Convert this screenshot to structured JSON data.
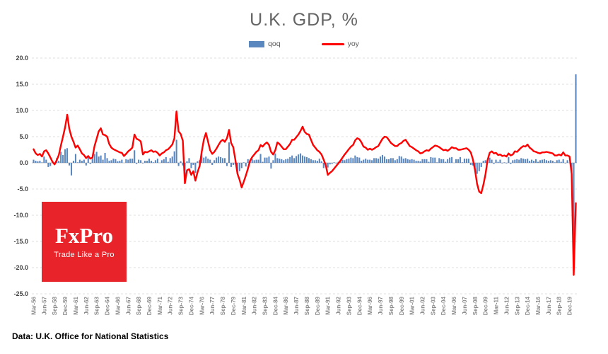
{
  "header": {
    "title": "U.K. GDP, %"
  },
  "legend": {
    "items": [
      {
        "label": "qoq",
        "type": "bar",
        "color": "#5b87bf"
      },
      {
        "label": "yoy",
        "type": "line",
        "color": "#ff0000"
      }
    ]
  },
  "logo": {
    "brand": "FxPro",
    "tagline": "Trade Like a Pro",
    "background": "#e8232a",
    "text_color": "#ffffff"
  },
  "footer": {
    "source": "Data: U.K. Office for National Statistics"
  },
  "chart_data": {
    "type": "combo",
    "title": "U.K. GDP, %",
    "frequency": "quarterly",
    "x_start": "Mar-56",
    "x_end": "Sep-20",
    "ylim": [
      -25,
      20
    ],
    "ytick_step": 5,
    "y_tick_labels": [
      "20.0",
      "15.0",
      "10.0",
      "5.0",
      "0.0",
      "-5.0",
      "-10.0",
      "-15.0",
      "-20.0",
      "-25.0"
    ],
    "grid": "horizontal-dashed",
    "legend_position": "top",
    "x_tick_labels": [
      "Mar-56",
      "Jun-57",
      "Sep-58",
      "Dec-59",
      "Mar-61",
      "Jun-62",
      "Sep-63",
      "Dec-64",
      "Mar-66",
      "Jun-67",
      "Sep-68",
      "Dec-69",
      "Mar-71",
      "Jun-72",
      "Sep-73",
      "Dec-74",
      "Mar-76",
      "Jun-77",
      "Sep-78",
      "Dec-79",
      "Mar-81",
      "Jun-82",
      "Sep-83",
      "Dec-84",
      "Mar-86",
      "Jun-87",
      "Sep-88",
      "Dec-89",
      "Mar-91",
      "Jun-92",
      "Sep-93",
      "Dec-94",
      "Mar-96",
      "Jun-97",
      "Sep-98",
      "Dec-99",
      "Mar-01",
      "Jun-02",
      "Sep-03",
      "Dec-04",
      "Mar-06",
      "Jun-07",
      "Sep-08",
      "Dec-09",
      "Mar-11",
      "Jun-12",
      "Sep-13",
      "Dec-14",
      "Mar-16",
      "Jun-17",
      "Sep-18",
      "Dec-19"
    ],
    "series": [
      {
        "name": "qoq",
        "type": "bar",
        "color": "#5b87bf",
        "values": [
          0.6,
          0.4,
          0.3,
          0.4,
          0.1,
          1.2,
          0.6,
          -0.8,
          -0.6,
          0.3,
          -0.1,
          0.9,
          0.4,
          2.1,
          1.5,
          2.6,
          2.8,
          -0.5,
          -2.4,
          0.4,
          1.7,
          0.1,
          0.6,
          0.4,
          0.6,
          -0.5,
          1.0,
          -0.2,
          0.8,
          1.7,
          2.1,
          1.2,
          1.4,
          0.6,
          1.9,
          0.9,
          0.4,
          0.5,
          0.8,
          0.7,
          0.3,
          0.4,
          0.6,
          0.0,
          0.7,
          0.6,
          0.8,
          0.8,
          2.4,
          -0.2,
          0.6,
          0.5,
          -0.1,
          0.4,
          0.4,
          0.8,
          0.4,
          0.1,
          0.5,
          0.8,
          0.0,
          0.5,
          0.7,
          1.1,
          0.2,
          0.9,
          1.2,
          2.2,
          4.4,
          -0.6,
          0.3,
          -0.5,
          -2.7,
          0.3,
          0.9,
          -1.0,
          -0.4,
          -1.9,
          0.3,
          0.5,
          2.2,
          1.0,
          1.2,
          0.8,
          0.6,
          -0.4,
          0.5,
          1.0,
          1.2,
          1.1,
          0.9,
          0.9,
          -0.6,
          3.9,
          -0.8,
          -0.4,
          -0.3,
          -1.9,
          -1.6,
          -1.0,
          0.1,
          -0.7,
          0.7,
          0.4,
          0.7,
          0.5,
          0.6,
          0.6,
          1.7,
          0.2,
          1.0,
          1.0,
          1.2,
          -1.1,
          0.5,
          1.8,
          0.9,
          0.8,
          0.7,
          0.5,
          0.7,
          0.8,
          1.1,
          1.4,
          0.9,
          1.3,
          1.6,
          1.8,
          1.4,
          1.2,
          1.1,
          0.9,
          0.7,
          0.5,
          0.5,
          0.4,
          0.8,
          0.3,
          -1.0,
          -0.7,
          -0.9,
          -0.3,
          -0.2,
          0.1,
          -0.1,
          0.2,
          0.4,
          0.6,
          0.5,
          0.7,
          0.8,
          1.0,
          0.9,
          1.4,
          1.1,
          1.0,
          0.4,
          0.6,
          0.8,
          0.6,
          0.6,
          0.5,
          0.9,
          0.9,
          0.8,
          1.2,
          1.5,
          1.2,
          0.7,
          0.7,
          0.9,
          0.9,
          0.5,
          0.7,
          1.3,
          1.2,
          0.8,
          0.9,
          0.7,
          0.6,
          0.7,
          0.6,
          0.4,
          0.4,
          0.3,
          0.7,
          0.7,
          0.7,
          0.2,
          1.1,
          1.0,
          1.0,
          0.1,
          0.9,
          0.7,
          0.7,
          0.2,
          0.7,
          1.0,
          1.1,
          0.0,
          0.7,
          0.7,
          1.1,
          0.1,
          0.8,
          0.8,
          0.8,
          -0.4,
          -0.5,
          -1.2,
          -2.1,
          -1.6,
          -0.8,
          0.4,
          0.5,
          0.5,
          1.0,
          0.6,
          -0.2,
          0.6,
          0.2,
          0.6,
          -0.1,
          0.1,
          -0.1,
          1.1,
          -0.2,
          0.5,
          0.6,
          0.7,
          0.6,
          0.9,
          0.8,
          0.7,
          0.8,
          0.4,
          0.6,
          0.4,
          0.7,
          0.2,
          0.5,
          0.6,
          0.7,
          0.5,
          0.4,
          0.5,
          0.4,
          0.1,
          0.5,
          0.6,
          0.2,
          0.7,
          -0.1,
          0.5,
          0.0,
          -2.9,
          -19.0,
          16.9
        ]
      },
      {
        "name": "yoy",
        "type": "line",
        "color": "#ff0000",
        "values": [
          2.6,
          1.8,
          1.5,
          1.7,
          1.2,
          2.2,
          2.4,
          1.8,
          1.0,
          0.2,
          -0.3,
          0.5,
          1.5,
          3.3,
          5.0,
          6.8,
          9.2,
          6.5,
          5.0,
          4.0,
          2.9,
          3.3,
          2.6,
          1.8,
          1.5,
          0.9,
          1.3,
          0.8,
          1.0,
          3.2,
          4.6,
          6.0,
          6.6,
          5.4,
          5.3,
          5.0,
          3.6,
          2.9,
          2.6,
          2.4,
          2.2,
          2.0,
          1.9,
          1.3,
          1.7,
          2.2,
          2.5,
          2.9,
          5.4,
          4.6,
          4.4,
          4.1,
          1.6,
          2.1,
          2.0,
          2.2,
          2.4,
          2.1,
          2.2,
          1.9,
          1.4,
          1.8,
          2.0,
          2.4,
          2.6,
          3.0,
          3.5,
          4.7,
          9.8,
          6.0,
          5.5,
          4.2,
          -3.9,
          -1.4,
          -1.2,
          -2.3,
          -1.6,
          -3.4,
          -1.8,
          -0.6,
          2.1,
          4.4,
          5.7,
          4.1,
          2.4,
          1.7,
          2.1,
          2.7,
          3.4,
          4.1,
          4.4,
          4.0,
          4.7,
          6.3,
          3.8,
          3.0,
          0.6,
          -2.1,
          -3.2,
          -4.7,
          -3.6,
          -2.4,
          -1.1,
          0.4,
          1.1,
          1.6,
          2.1,
          2.4,
          3.4,
          3.1,
          3.6,
          3.9,
          3.4,
          2.1,
          1.6,
          2.4,
          3.9,
          3.6,
          3.1,
          2.6,
          2.6,
          3.1,
          3.6,
          4.4,
          4.4,
          4.9,
          5.4,
          6.1,
          6.9,
          5.9,
          5.5,
          5.4,
          4.4,
          3.4,
          2.9,
          2.4,
          2.1,
          1.6,
          0.6,
          -0.4,
          -2.3,
          -1.9,
          -1.6,
          -1.1,
          -0.6,
          -0.1,
          0.4,
          1.0,
          1.6,
          2.1,
          2.6,
          3.1,
          3.4,
          4.3,
          4.7,
          4.5,
          3.9,
          3.1,
          2.9,
          2.5,
          2.7,
          2.5,
          2.7,
          3.0,
          3.2,
          3.9,
          4.6,
          5.0,
          4.9,
          4.4,
          3.8,
          3.5,
          3.2,
          3.2,
          3.6,
          3.8,
          4.2,
          4.4,
          3.8,
          3.2,
          3.0,
          2.7,
          2.4,
          2.2,
          1.8,
          1.9,
          2.2,
          2.4,
          2.3,
          2.7,
          3.0,
          3.3,
          3.2,
          3.0,
          2.7,
          2.4,
          2.5,
          2.3,
          2.6,
          3.0,
          2.8,
          2.8,
          2.5,
          2.5,
          2.6,
          2.7,
          2.8,
          2.5,
          2.0,
          0.7,
          -1.3,
          -4.0,
          -5.5,
          -5.8,
          -4.2,
          -2.2,
          0.5,
          1.9,
          2.2,
          1.8,
          1.9,
          1.5,
          1.6,
          1.3,
          1.4,
          1.2,
          1.8,
          1.4,
          1.6,
          2.2,
          2.1,
          2.5,
          2.9,
          3.2,
          3.1,
          3.5,
          2.9,
          2.6,
          2.2,
          2.1,
          1.9,
          1.8,
          2.0,
          2.0,
          2.1,
          2.0,
          1.9,
          1.8,
          1.4,
          1.4,
          1.6,
          1.4,
          2.0,
          1.4,
          1.4,
          1.2,
          -2.1,
          -21.4,
          -7.7
        ]
      }
    ]
  }
}
